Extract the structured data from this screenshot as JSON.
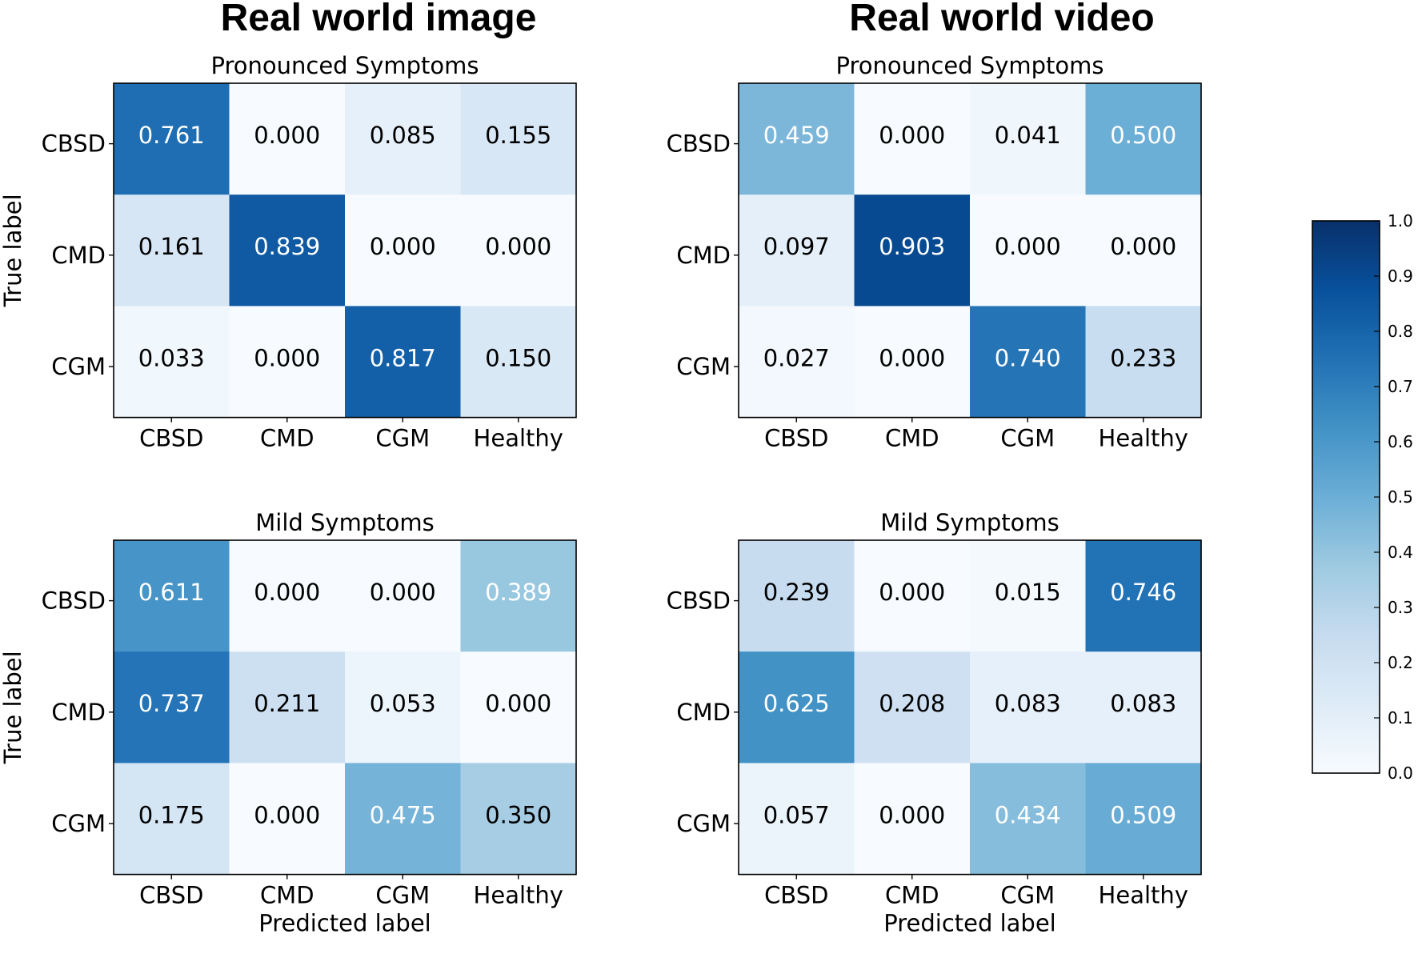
{
  "column_titles": [
    "Real world image",
    "Real world video"
  ],
  "colorbar": {
    "min": 0.0,
    "max": 1.0,
    "ticks": [
      "0.0",
      "0.1",
      "0.2",
      "0.3",
      "0.4",
      "0.5",
      "0.6",
      "0.7",
      "0.8",
      "0.9",
      "1.0"
    ]
  },
  "chart_data": [
    {
      "type": "heatmap",
      "column_title": "Real world image",
      "title": "Pronounced Symptoms",
      "xlabel": "",
      "ylabel": "True label",
      "x_categories": [
        "CBSD",
        "CMD",
        "CGM",
        "Healthy"
      ],
      "y_categories": [
        "CBSD",
        "CMD",
        "CGM"
      ],
      "values": [
        [
          0.761,
          0.0,
          0.085,
          0.155
        ],
        [
          0.161,
          0.839,
          0.0,
          0.0
        ],
        [
          0.033,
          0.0,
          0.817,
          0.15
        ]
      ]
    },
    {
      "type": "heatmap",
      "column_title": "Real world video",
      "title": "Pronounced Symptoms",
      "xlabel": "",
      "ylabel": "",
      "x_categories": [
        "CBSD",
        "CMD",
        "CGM",
        "Healthy"
      ],
      "y_categories": [
        "CBSD",
        "CMD",
        "CGM"
      ],
      "values": [
        [
          0.459,
          0.0,
          0.041,
          0.5
        ],
        [
          0.097,
          0.903,
          0.0,
          0.0
        ],
        [
          0.027,
          0.0,
          0.74,
          0.233
        ]
      ]
    },
    {
      "type": "heatmap",
      "column_title": "Real world image",
      "title": "Mild Symptoms",
      "xlabel": "Predicted label",
      "ylabel": "True label",
      "x_categories": [
        "CBSD",
        "CMD",
        "CGM",
        "Healthy"
      ],
      "y_categories": [
        "CBSD",
        "CMD",
        "CGM"
      ],
      "values": [
        [
          0.611,
          0.0,
          0.0,
          0.389
        ],
        [
          0.737,
          0.211,
          0.053,
          0.0
        ],
        [
          0.175,
          0.0,
          0.475,
          0.35
        ]
      ]
    },
    {
      "type": "heatmap",
      "column_title": "Real world video",
      "title": "Mild Symptoms",
      "xlabel": "Predicted label",
      "ylabel": "",
      "x_categories": [
        "CBSD",
        "CMD",
        "CGM",
        "Healthy"
      ],
      "y_categories": [
        "CBSD",
        "CMD",
        "CGM"
      ],
      "values": [
        [
          0.239,
          0.0,
          0.015,
          0.746
        ],
        [
          0.625,
          0.208,
          0.083,
          0.083
        ],
        [
          0.057,
          0.0,
          0.434,
          0.509
        ]
      ]
    }
  ]
}
